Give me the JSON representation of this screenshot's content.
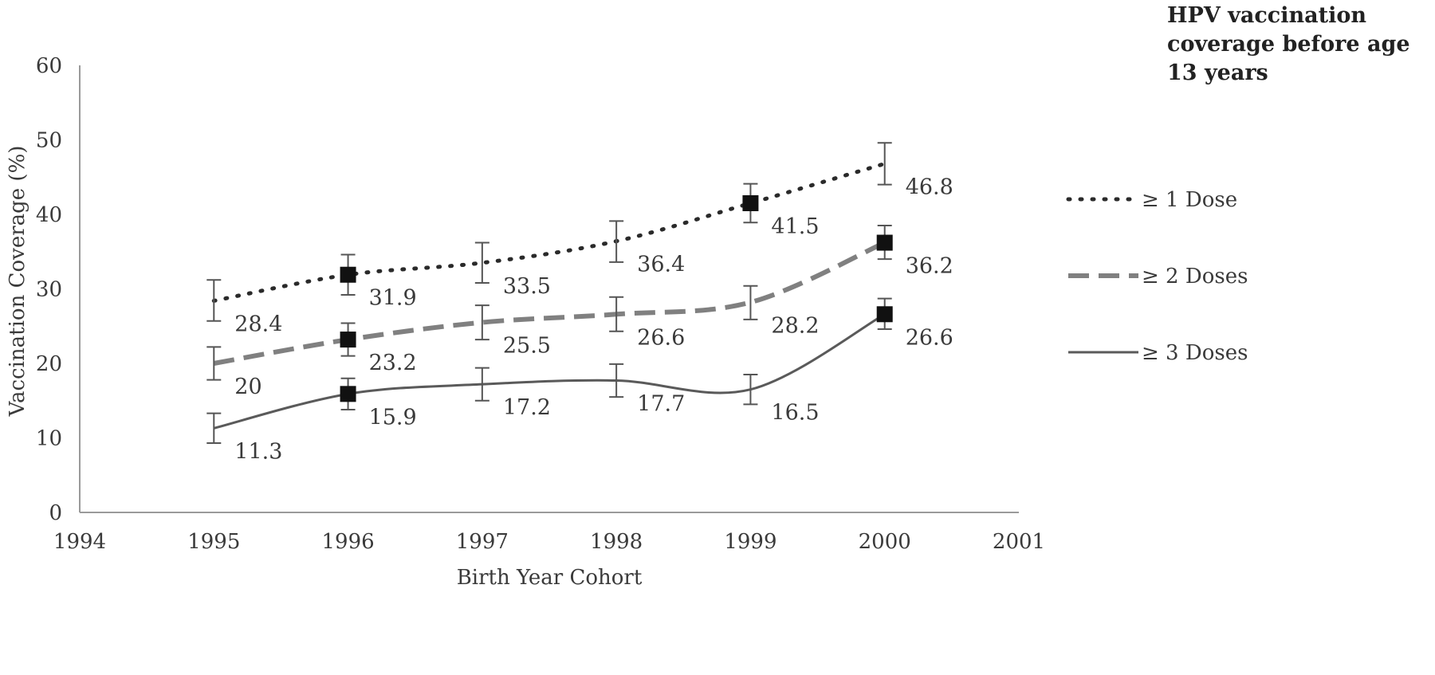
{
  "chart_data": {
    "type": "line",
    "title": "",
    "xlabel": "Birth Year Cohort",
    "ylabel": "Vaccination Coverage (%)",
    "xlim": [
      1994,
      2001
    ],
    "ylim": [
      0,
      60
    ],
    "x_ticks": [
      1994,
      1995,
      1996,
      1997,
      1998,
      1999,
      2000,
      2001
    ],
    "y_ticks": [
      0,
      10,
      20,
      30,
      40,
      50,
      60
    ],
    "grid": false,
    "legend_title": [
      "HPV  vaccination",
      "coverage before age",
      "13  years"
    ],
    "legend_position": "right",
    "x": [
      1995,
      1996,
      1997,
      1998,
      1999,
      2000
    ],
    "series": [
      {
        "name": "≥ 1 Dose",
        "style": "dotted",
        "color": "#2a2a2a",
        "values": [
          28.4,
          31.9,
          33.5,
          36.4,
          41.5,
          46.8
        ],
        "err_low": [
          25.7,
          29.2,
          30.8,
          33.6,
          38.9,
          44.0
        ],
        "err_high": [
          31.2,
          34.6,
          36.2,
          39.1,
          44.1,
          49.6
        ],
        "markers": [
          1996,
          1999
        ]
      },
      {
        "name": "≥ 2 Doses",
        "style": "dashed",
        "color": "#808080",
        "values": [
          20,
          23.2,
          25.5,
          26.6,
          28.2,
          36.2
        ],
        "err_low": [
          17.8,
          21.0,
          23.2,
          24.3,
          25.9,
          34.0
        ],
        "err_high": [
          22.2,
          25.4,
          27.8,
          28.9,
          30.4,
          38.5
        ],
        "markers": [
          1996,
          2000
        ]
      },
      {
        "name": "≥ 3 Doses",
        "style": "solid",
        "color": "#5a5a5a",
        "values": [
          11.3,
          15.9,
          17.2,
          17.7,
          16.5,
          26.6
        ],
        "err_low": [
          9.3,
          13.8,
          15.0,
          15.5,
          14.5,
          24.6
        ],
        "err_high": [
          13.3,
          18.0,
          19.4,
          19.9,
          18.5,
          28.7
        ],
        "markers": [
          1996,
          2000
        ]
      }
    ]
  }
}
